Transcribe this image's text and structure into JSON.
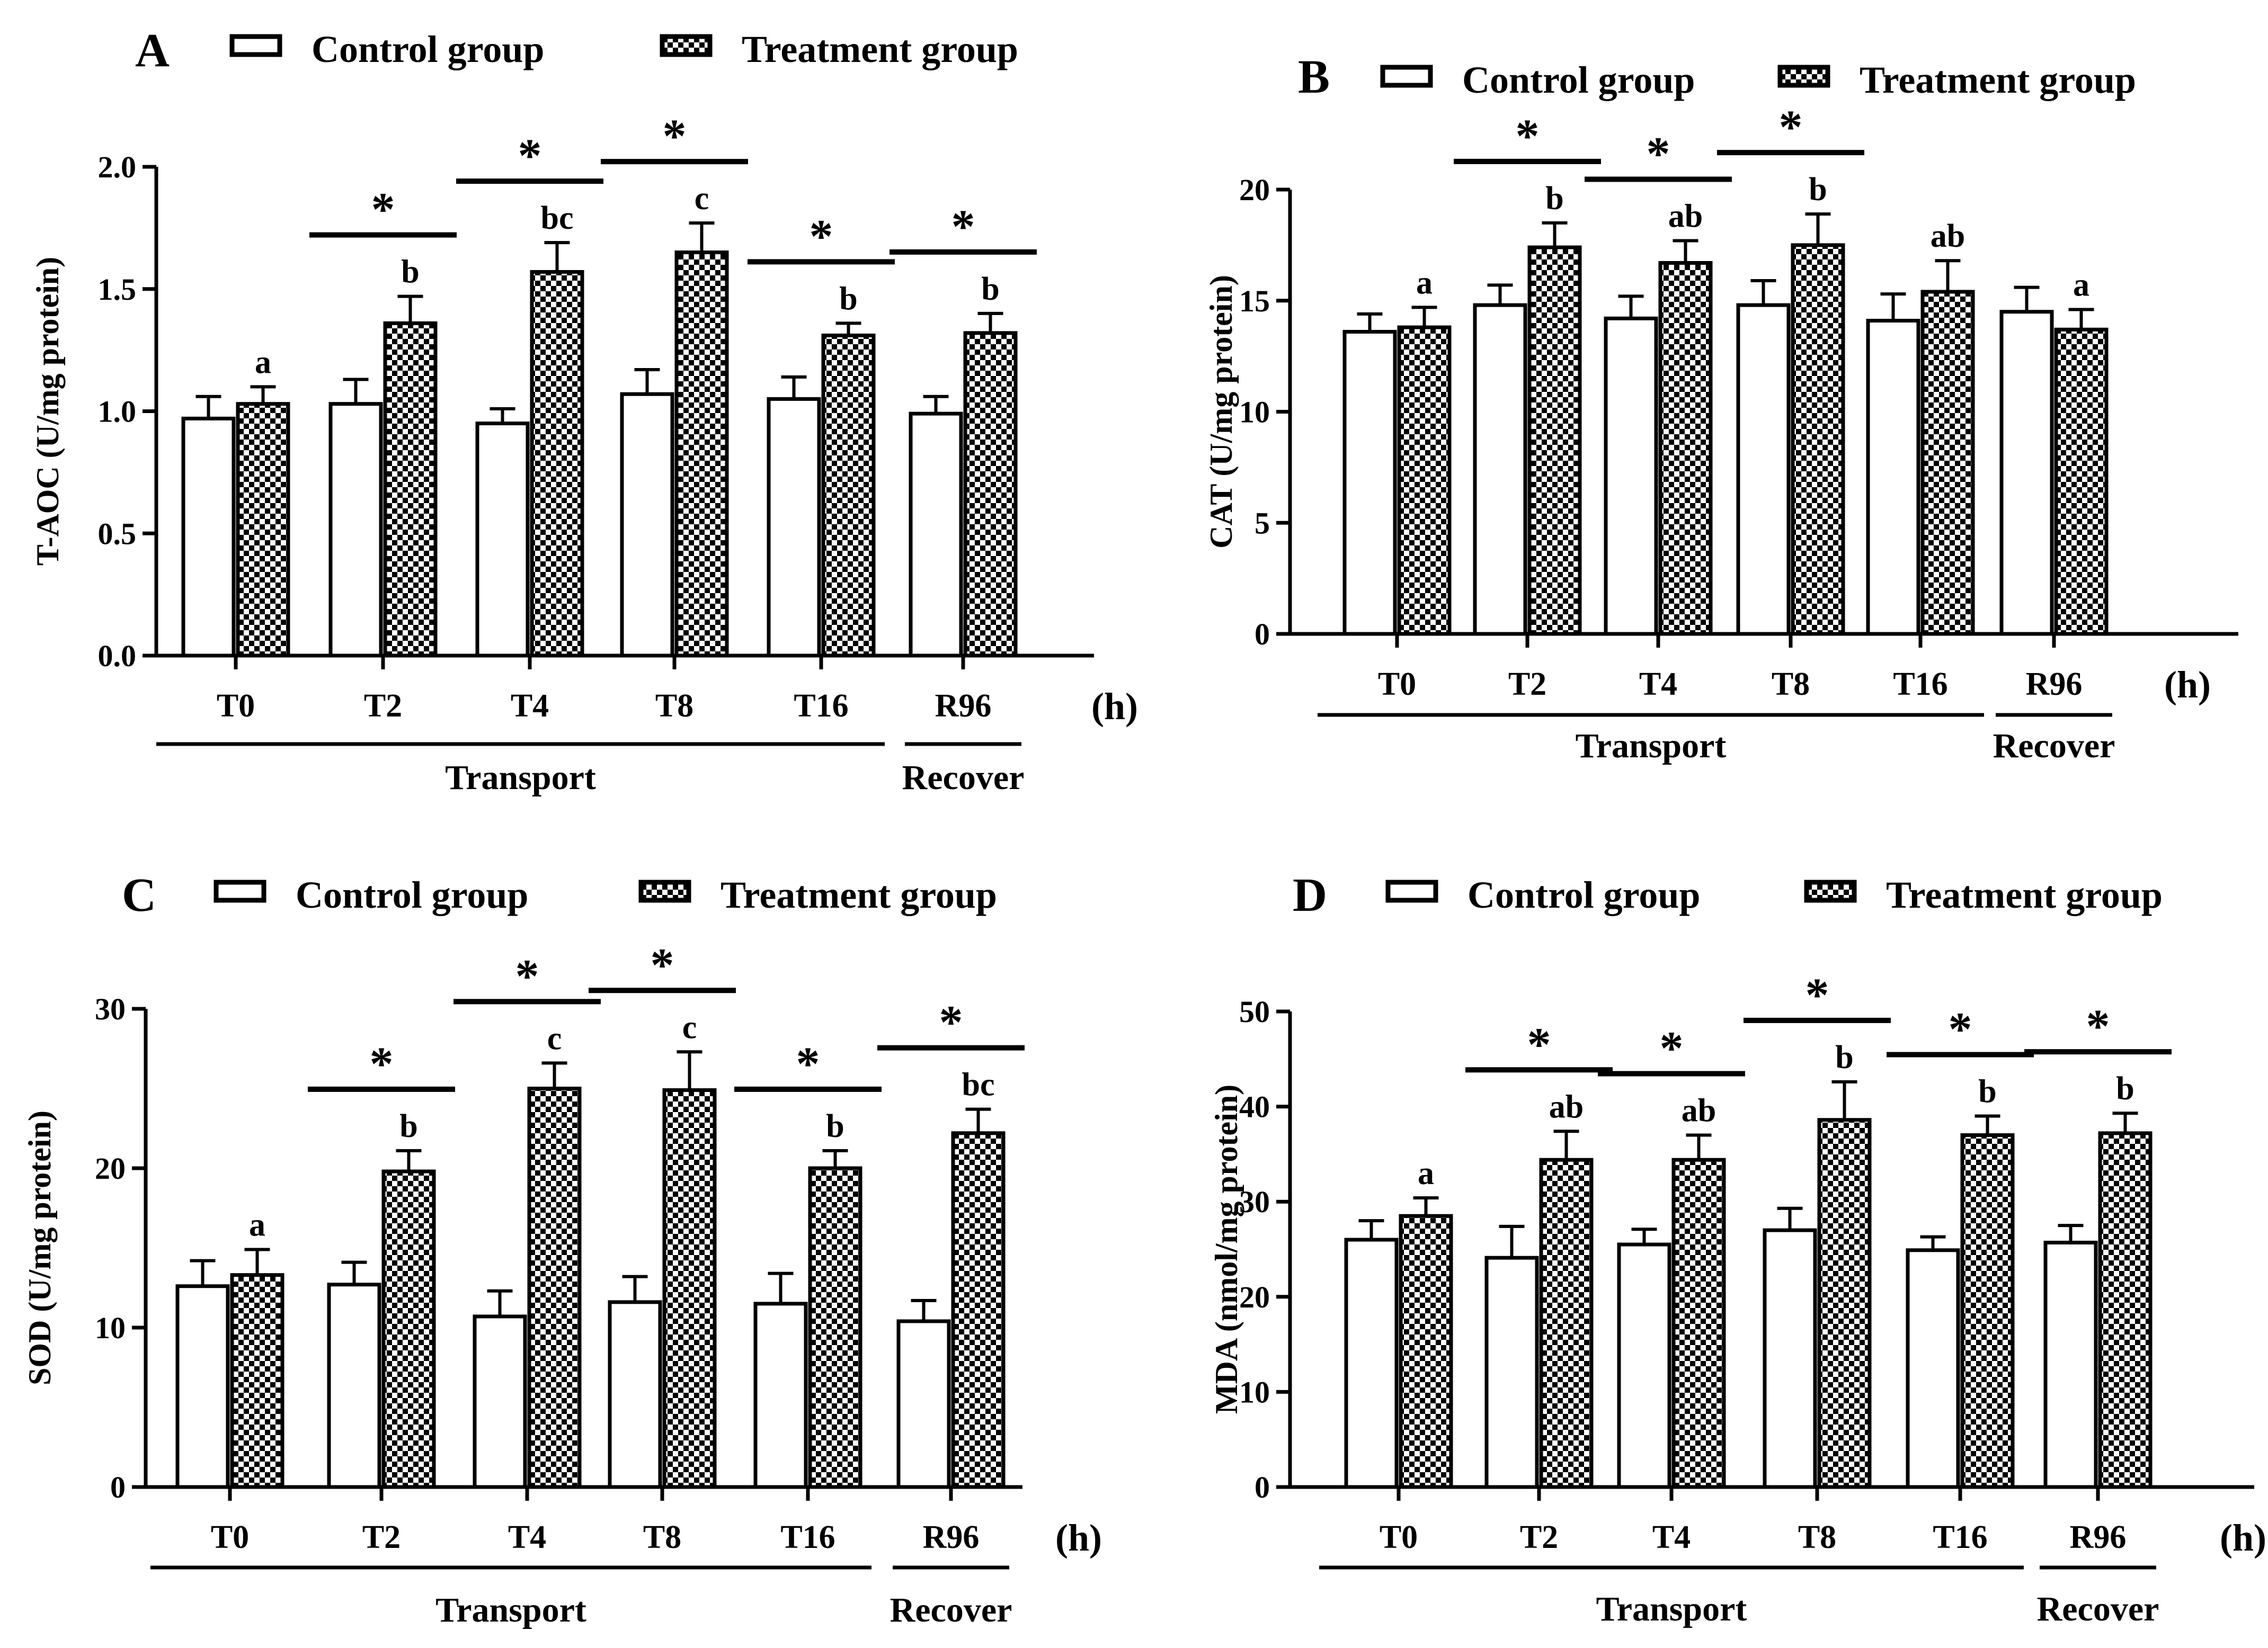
{
  "legend": {
    "control": "Control group",
    "treatment": "Treatment group"
  },
  "colors": {
    "control_fill": "#ffffff",
    "treatment_fill": "#000000",
    "stroke": "#000000"
  },
  "chart_data": [
    {
      "panel": "A",
      "type": "bar",
      "ylabel": "T-AOC (U/mg protein)",
      "ylim": [
        0,
        2.0
      ],
      "yticks": [
        0,
        0.5,
        1.0,
        1.5,
        2.0
      ],
      "ytick_labels": [
        "0.0",
        "0.5",
        "1.0",
        "1.5",
        "2.0"
      ],
      "categories": [
        "T0",
        "T2",
        "T4",
        "T8",
        "T16",
        "R96"
      ],
      "unit": "(h)",
      "groups": [
        {
          "label": "Transport",
          "from": 0,
          "to": 4
        },
        {
          "label": "Recover",
          "from": 5,
          "to": 5
        }
      ],
      "series": [
        {
          "name": "Control group",
          "values": [
            0.97,
            1.03,
            0.95,
            1.07,
            1.05,
            0.99
          ],
          "errors": [
            0.09,
            0.1,
            0.06,
            0.1,
            0.09,
            0.07
          ]
        },
        {
          "name": "Treatment group",
          "values": [
            1.03,
            1.36,
            1.57,
            1.65,
            1.31,
            1.32
          ],
          "errors": [
            0.07,
            0.11,
            0.12,
            0.12,
            0.05,
            0.08
          ]
        }
      ],
      "letters": [
        "a",
        "b",
        "bc",
        "c",
        "b",
        "b"
      ],
      "stars": [
        false,
        true,
        true,
        true,
        true,
        true
      ],
      "star_symbol": "*"
    },
    {
      "panel": "B",
      "type": "bar",
      "ylabel": "CAT (U/mg protein)",
      "ylim": [
        0,
        20
      ],
      "yticks": [
        0,
        5,
        10,
        15,
        20
      ],
      "ytick_labels": [
        "0",
        "5",
        "10",
        "15",
        "20"
      ],
      "categories": [
        "T0",
        "T2",
        "T4",
        "T8",
        "T16",
        "R96"
      ],
      "unit": "(h)",
      "groups": [
        {
          "label": "Transport",
          "from": 0,
          "to": 4
        },
        {
          "label": "Recover",
          "from": 5,
          "to": 5
        }
      ],
      "series": [
        {
          "name": "Control group",
          "values": [
            13.6,
            14.8,
            14.2,
            14.8,
            14.1,
            14.5
          ],
          "errors": [
            0.8,
            0.9,
            1.0,
            1.1,
            1.2,
            1.1
          ]
        },
        {
          "name": "Treatment group",
          "values": [
            13.8,
            17.4,
            16.7,
            17.5,
            15.4,
            13.7
          ],
          "errors": [
            0.9,
            1.1,
            1.0,
            1.4,
            1.4,
            0.9
          ]
        }
      ],
      "letters": [
        "a",
        "b",
        "ab",
        "b",
        "ab",
        "a"
      ],
      "stars": [
        false,
        true,
        true,
        true,
        false,
        false
      ],
      "star_symbol": "*"
    },
    {
      "panel": "C",
      "type": "bar",
      "ylabel": "SOD (U/mg protein)",
      "ylim": [
        0,
        30
      ],
      "yticks": [
        0,
        10,
        20,
        30
      ],
      "ytick_labels": [
        "0",
        "10",
        "20",
        "30"
      ],
      "categories": [
        "T0",
        "T2",
        "T4",
        "T8",
        "T16",
        "R96"
      ],
      "unit": "(h)",
      "groups": [
        {
          "label": "Transport",
          "from": 0,
          "to": 4
        },
        {
          "label": "Recover",
          "from": 5,
          "to": 5
        }
      ],
      "series": [
        {
          "name": "Control group",
          "values": [
            12.6,
            12.7,
            10.7,
            11.6,
            11.5,
            10.4
          ],
          "errors": [
            1.6,
            1.4,
            1.6,
            1.6,
            1.9,
            1.3
          ]
        },
        {
          "name": "Treatment group",
          "values": [
            13.3,
            19.8,
            25.0,
            24.9,
            20.0,
            22.2
          ],
          "errors": [
            1.6,
            1.3,
            1.6,
            2.4,
            1.1,
            1.5
          ]
        }
      ],
      "letters": [
        "a",
        "b",
        "c",
        "c",
        "b",
        "bc"
      ],
      "stars": [
        false,
        true,
        true,
        true,
        true,
        true
      ],
      "star_symbol": "*"
    },
    {
      "panel": "D",
      "type": "bar",
      "ylabel": "MDA (nmol/mg protein)",
      "ylim": [
        0,
        50
      ],
      "yticks": [
        0,
        10,
        20,
        30,
        40,
        50
      ],
      "ytick_labels": [
        "0",
        "10",
        "20",
        "30",
        "40",
        "50"
      ],
      "categories": [
        "T0",
        "T2",
        "T4",
        "T8",
        "T16",
        "R96"
      ],
      "unit": "(h)",
      "groups": [
        {
          "label": "Transport",
          "from": 0,
          "to": 4
        },
        {
          "label": "Recover",
          "from": 5,
          "to": 5
        }
      ],
      "series": [
        {
          "name": "Control group",
          "values": [
            26.0,
            24.1,
            25.5,
            27.0,
            24.9,
            25.7
          ],
          "errors": [
            2.0,
            3.3,
            1.6,
            2.3,
            1.4,
            1.8
          ]
        },
        {
          "name": "Treatment group",
          "values": [
            28.5,
            34.4,
            34.4,
            38.6,
            37.0,
            37.2
          ],
          "errors": [
            1.9,
            3.0,
            2.6,
            4.0,
            2.0,
            2.1
          ]
        }
      ],
      "letters": [
        "a",
        "ab",
        "ab",
        "b",
        "b",
        "b"
      ],
      "stars": [
        false,
        true,
        true,
        true,
        true,
        true
      ],
      "star_symbol": "*"
    }
  ]
}
